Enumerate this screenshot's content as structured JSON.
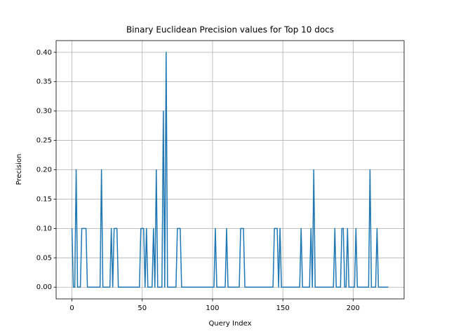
{
  "chart_data": {
    "type": "line",
    "title": "Binary Euclidean Precision values for Top 10 docs",
    "x_label": "Query Index",
    "y_label": "Precision",
    "x": [
      0,
      1,
      2,
      3,
      4,
      5,
      6,
      7,
      8,
      9,
      10,
      11,
      12,
      13,
      14,
      15,
      16,
      17,
      18,
      19,
      20,
      21,
      22,
      23,
      24,
      25,
      26,
      27,
      28,
      29,
      30,
      31,
      32,
      33,
      34,
      35,
      36,
      37,
      38,
      39,
      40,
      41,
      42,
      43,
      44,
      45,
      46,
      47,
      48,
      49,
      50,
      51,
      52,
      53,
      54,
      55,
      56,
      57,
      58,
      59,
      60,
      61,
      62,
      63,
      64,
      65,
      66,
      67,
      68,
      69,
      70,
      71,
      72,
      73,
      74,
      75,
      76,
      77,
      78,
      79,
      80,
      81,
      82,
      83,
      84,
      85,
      86,
      87,
      88,
      89,
      90,
      91,
      92,
      93,
      94,
      95,
      96,
      97,
      98,
      99,
      100,
      101,
      102,
      103,
      104,
      105,
      106,
      107,
      108,
      109,
      110,
      111,
      112,
      113,
      114,
      115,
      116,
      117,
      118,
      119,
      120,
      121,
      122,
      123,
      124,
      125,
      126,
      127,
      128,
      129,
      130,
      131,
      132,
      133,
      134,
      135,
      136,
      137,
      138,
      139,
      140,
      141,
      142,
      143,
      144,
      145,
      146,
      147,
      148,
      149,
      150,
      151,
      152,
      153,
      154,
      155,
      156,
      157,
      158,
      159,
      160,
      161,
      162,
      163,
      164,
      165,
      166,
      167,
      168,
      169,
      170,
      171,
      172,
      173,
      174,
      175,
      176,
      177,
      178,
      179,
      180,
      181,
      182,
      183,
      184,
      185,
      186,
      187,
      188,
      189,
      190,
      191,
      192,
      193,
      194,
      195,
      196,
      197,
      198,
      199,
      200,
      201,
      202,
      203,
      204,
      205,
      206,
      207,
      208,
      209,
      210,
      211,
      212,
      213,
      214,
      215,
      216,
      217,
      218,
      219,
      220,
      221,
      222,
      223,
      224,
      225
    ],
    "series": [
      {
        "name": "Precision",
        "color": "#1f77b4",
        "values": [
          0.1,
          0,
          0,
          0.2,
          0,
          0,
          0,
          0.1,
          0.1,
          0.1,
          0.1,
          0,
          0,
          0,
          0,
          0,
          0,
          0,
          0,
          0,
          0,
          0.2,
          0,
          0,
          0,
          0,
          0,
          0,
          0.1,
          0,
          0.1,
          0.1,
          0.1,
          0,
          0,
          0,
          0,
          0,
          0,
          0,
          0,
          0,
          0,
          0,
          0,
          0,
          0,
          0,
          0,
          0.1,
          0.1,
          0.1,
          0,
          0.1,
          0,
          0,
          0,
          0,
          0.1,
          0,
          0.2,
          0,
          0,
          0,
          0,
          0.3,
          0,
          0.4,
          0,
          0,
          0,
          0,
          0,
          0,
          0,
          0.1,
          0.1,
          0.1,
          0,
          0,
          0,
          0,
          0,
          0,
          0,
          0,
          0,
          0,
          0,
          0,
          0,
          0,
          0,
          0,
          0,
          0,
          0,
          0,
          0,
          0,
          0,
          0,
          0.1,
          0,
          0,
          0,
          0,
          0,
          0,
          0,
          0.1,
          0,
          0,
          0,
          0,
          0,
          0,
          0,
          0,
          0,
          0.1,
          0.1,
          0.1,
          0,
          0,
          0,
          0,
          0,
          0,
          0,
          0,
          0,
          0,
          0,
          0,
          0,
          0,
          0,
          0,
          0,
          0,
          0,
          0,
          0,
          0.1,
          0.1,
          0.1,
          0,
          0.1,
          0,
          0,
          0,
          0,
          0,
          0,
          0,
          0,
          0,
          0,
          0,
          0,
          0,
          0,
          0.1,
          0,
          0,
          0,
          0,
          0,
          0,
          0.1,
          0,
          0.2,
          0,
          0,
          0,
          0,
          0,
          0,
          0,
          0,
          0,
          0,
          0,
          0,
          0,
          0,
          0.1,
          0,
          0,
          0,
          0,
          0.1,
          0.1,
          0,
          0,
          0.1,
          0,
          0,
          0,
          0,
          0,
          0.1,
          0,
          0,
          0,
          0,
          0,
          0,
          0,
          0,
          0,
          0.2,
          0,
          0,
          0,
          0,
          0.1,
          0,
          0,
          0,
          0,
          0,
          0,
          0,
          0
        ]
      }
    ],
    "xlim": [
      -11.25,
      236.25
    ],
    "xticks": [
      0,
      50,
      100,
      150,
      200
    ],
    "ylim": [
      -0.02,
      0.42
    ],
    "yticks": [
      {
        "value": 0,
        "label": "0.00"
      },
      {
        "value": 0.05,
        "label": "0.05"
      },
      {
        "value": 0.1,
        "label": "0.10"
      },
      {
        "value": 0.15,
        "label": "0.15"
      },
      {
        "value": 0.2,
        "label": "0.20"
      },
      {
        "value": 0.25,
        "label": "0.25"
      },
      {
        "value": 0.3,
        "label": "0.30"
      },
      {
        "value": 0.35,
        "label": "0.35"
      },
      {
        "value": 0.4,
        "label": "0.40"
      }
    ],
    "grid": true
  }
}
